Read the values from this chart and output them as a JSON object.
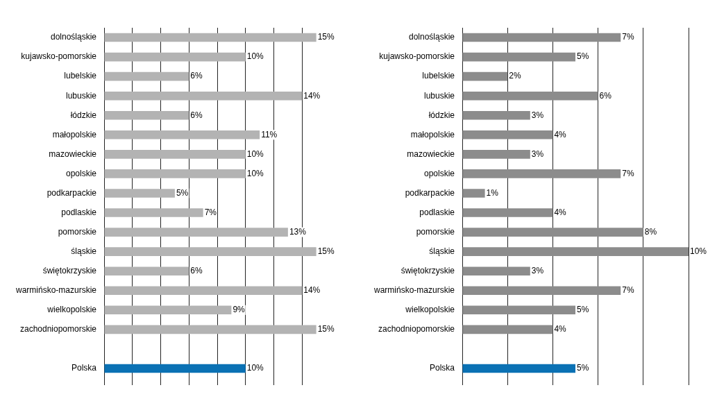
{
  "chart_data": [
    {
      "type": "bar",
      "orientation": "horizontal",
      "categories": [
        "dolnośląskie",
        "kujawsko-pomorskie",
        "lubelskie",
        "lubuskie",
        "łódzkie",
        "małopolskie",
        "mazowieckie",
        "opolskie",
        "podkarpackie",
        "podlaskie",
        "pomorskie",
        "śląskie",
        "świętokrzyskie",
        "warmińsko-mazurskie",
        "wielkopolskie",
        "zachodniopomorskie",
        null,
        "Polska"
      ],
      "values": [
        15,
        10,
        6,
        14,
        6,
        11,
        10,
        10,
        5,
        7,
        13,
        15,
        6,
        14,
        9,
        15,
        null,
        10
      ],
      "value_labels": [
        "15%",
        "10%",
        "6%",
        "14%",
        "6%",
        "11%",
        "10%",
        "10%",
        "5%",
        "7%",
        "13%",
        "15%",
        "6%",
        "14%",
        "9%",
        "15%",
        null,
        "10%"
      ],
      "colors": [
        "#b3b3b3",
        "#b3b3b3",
        "#b3b3b3",
        "#b3b3b3",
        "#b3b3b3",
        "#b3b3b3",
        "#b3b3b3",
        "#b3b3b3",
        "#b3b3b3",
        "#b3b3b3",
        "#b3b3b3",
        "#b3b3b3",
        "#b3b3b3",
        "#b3b3b3",
        "#b3b3b3",
        "#b3b3b3",
        "#b3b3b3",
        "#0a71b4"
      ],
      "xticks": [
        {
          "value": 0,
          "label": null
        },
        {
          "value": 2,
          "label": null
        },
        {
          "value": 4,
          "label": null
        },
        {
          "value": 6,
          "label": null
        },
        {
          "value": 8,
          "label": null
        },
        {
          "value": 10,
          "label": null
        },
        {
          "value": 12,
          "label": null
        },
        {
          "value": 14,
          "label": null
        }
      ],
      "grid": "x",
      "tick_labels": "y",
      "legend": false
    },
    {
      "type": "bar",
      "orientation": "horizontal",
      "categories": [
        "dolnośląskie",
        "kujawsko-pomorskie",
        "lubelskie",
        "lubuskie",
        "łódzkie",
        "małopolskie",
        "mazowieckie",
        "opolskie",
        "podkarpackie",
        "podlaskie",
        "pomorskie",
        "śląskie",
        "świętokrzyskie",
        "warmińsko-mazurskie",
        "wielkopolskie",
        "zachodniopomorskie",
        null,
        "Polska"
      ],
      "values": [
        7,
        5,
        2,
        6,
        3,
        4,
        3,
        7,
        1,
        4,
        8,
        10,
        3,
        7,
        5,
        4,
        null,
        5
      ],
      "value_labels": [
        "7%",
        "5%",
        "2%",
        "6%",
        "3%",
        "4%",
        "3%",
        "7%",
        "1%",
        "4%",
        "8%",
        "10%",
        "3%",
        "7%",
        "5%",
        "4%",
        null,
        "5%"
      ],
      "colors": [
        "#8c8c8c",
        "#8c8c8c",
        "#8c8c8c",
        "#8c8c8c",
        "#8c8c8c",
        "#8c8c8c",
        "#8c8c8c",
        "#8c8c8c",
        "#8c8c8c",
        "#8c8c8c",
        "#8c8c8c",
        "#8c8c8c",
        "#8c8c8c",
        "#8c8c8c",
        "#8c8c8c",
        "#8c8c8c",
        "#8c8c8c",
        "#0a71b4"
      ],
      "xticks": [
        {
          "value": 0,
          "label": null
        },
        {
          "value": 2,
          "label": null
        },
        {
          "value": 4,
          "label": null
        },
        {
          "value": 6,
          "label": null
        },
        {
          "value": 8,
          "label": null
        },
        {
          "value": 10,
          "label": null
        }
      ],
      "grid": "x",
      "tick_labels": "y",
      "legend": false
    }
  ]
}
